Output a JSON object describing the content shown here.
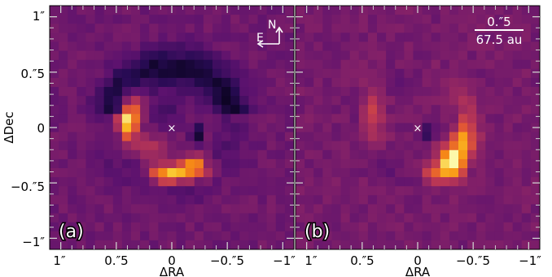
{
  "figure": {
    "xlabel": "ΔRA",
    "ylabel": "ΔDec",
    "x_tick_labels": [
      "1″",
      "0.″5",
      "0",
      "−0.″5",
      "−1″"
    ],
    "y_tick_labels": [
      "1″",
      "0.″5",
      "0",
      "−0.″5",
      "−1″"
    ],
    "tick_values_arcsec": [
      1,
      0.5,
      0,
      -0.5,
      -1
    ],
    "colormap": "inferno",
    "colors": {
      "background": "#5f1d64",
      "low": "#1a0c3a",
      "mid": "#8a2a62",
      "high": "#e8641c",
      "peak": "#fcdc5c",
      "star_marker": "#ffffff",
      "annotation": "#ffffff"
    }
  },
  "panels": [
    {
      "letter": "(a)",
      "show_ylabel": true,
      "compass": {
        "north_label": "N",
        "east_label": "E",
        "icon": "compass-arrows-icon"
      },
      "star_marker": "×"
    },
    {
      "letter": "(b)",
      "show_ylabel": false,
      "scale_bar": {
        "angular_label": "0.″5",
        "physical_label": "67.5 au"
      },
      "star_marker": "×"
    }
  ]
}
